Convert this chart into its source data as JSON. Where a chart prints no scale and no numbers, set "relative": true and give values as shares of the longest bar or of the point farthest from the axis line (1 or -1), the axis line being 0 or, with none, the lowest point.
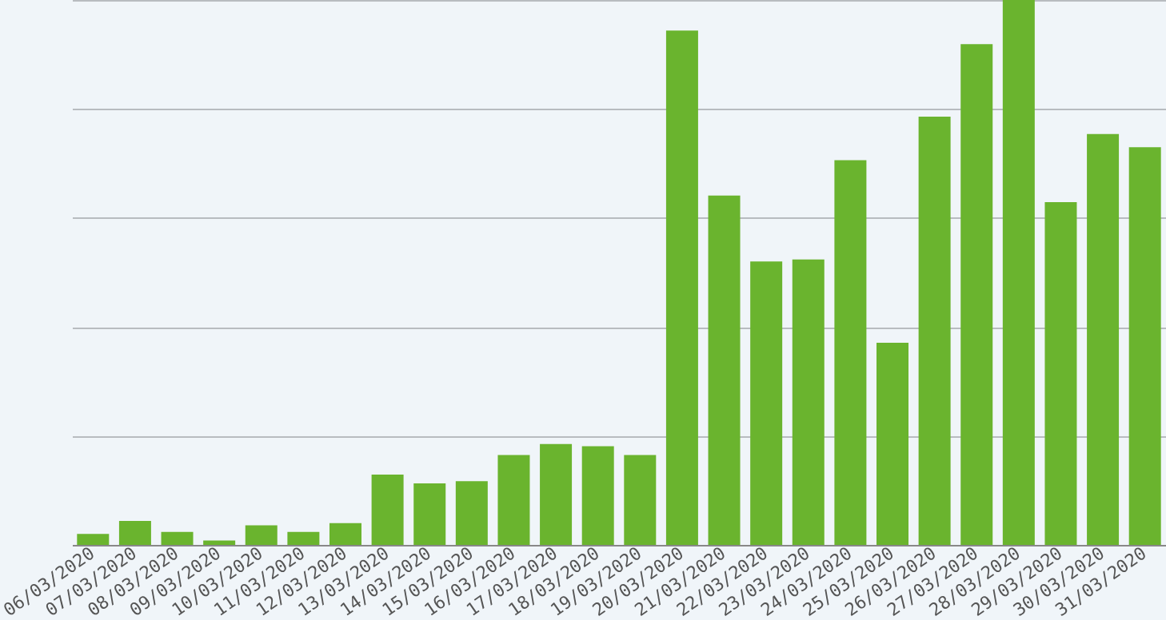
{
  "chart_data": {
    "type": "bar",
    "relative": true,
    "grid": "y",
    "color": "#6ab42e",
    "categories": [
      "06/03/2020",
      "07/03/2020",
      "08/03/2020",
      "09/03/2020",
      "10/03/2020",
      "11/03/2020",
      "12/03/2020",
      "13/03/2020",
      "14/03/2020",
      "15/03/2020",
      "16/03/2020",
      "17/03/2020",
      "18/03/2020",
      "19/03/2020",
      "20/03/2020",
      "21/03/2020",
      "22/03/2020",
      "23/03/2020",
      "24/03/2020",
      "25/03/2020",
      "26/03/2020",
      "27/03/2020",
      "28/03/2020",
      "29/03/2020",
      "30/03/2020",
      "31/03/2020"
    ],
    "values": [
      0.02,
      0.044,
      0.024,
      0.008,
      0.036,
      0.024,
      0.04,
      0.129,
      0.113,
      0.117,
      0.165,
      0.185,
      0.181,
      0.165,
      0.944,
      0.641,
      0.52,
      0.524,
      0.706,
      0.371,
      0.786,
      0.919,
      1,
      0.629,
      0.754,
      0.73
    ]
  }
}
